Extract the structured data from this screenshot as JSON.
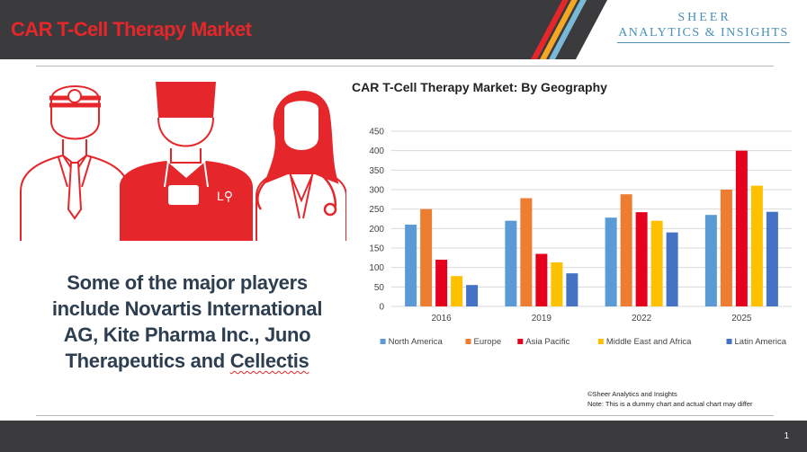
{
  "header": {
    "title": "CAR T-Cell Therapy Market"
  },
  "logo": {
    "line1": "SHEER",
    "line2": "ANALYTICS & INSIGHTS"
  },
  "body": {
    "players_text_main": "Some of the major players include Novartis International AG, Kite Pharma Inc., Juno Therapeutics and ",
    "players_text_last": "Cellectis"
  },
  "notes": {
    "copyright": "©Sheer Analytics and Insights",
    "disclaimer": "Note: This is a dummy chart and actual chart may differ"
  },
  "footer": {
    "page_number": "1"
  },
  "colors": {
    "brand_red": "#e5262a",
    "dark_bar": "#3b3b3d"
  },
  "icons": [
    "doctor-male-icon",
    "surgeon-icon",
    "doctor-female-icon",
    "stethoscope-icon"
  ],
  "chart_data": {
    "type": "bar",
    "title": "CAR T-Cell Therapy Market: By Geography",
    "categories": [
      "2016",
      "2019",
      "2022",
      "2025"
    ],
    "ylim": [
      0,
      450
    ],
    "yticks": [
      0,
      50,
      100,
      150,
      200,
      250,
      300,
      350,
      400,
      450
    ],
    "grid": true,
    "legend_position": "bottom",
    "series": [
      {
        "name": "North America",
        "color": "#5b9bd5",
        "values": [
          210,
          220,
          228,
          235
        ]
      },
      {
        "name": "Europe",
        "color": "#ed7d31",
        "values": [
          250,
          278,
          288,
          300
        ]
      },
      {
        "name": "Asia Pacific",
        "color": "#e5001e",
        "values": [
          120,
          135,
          242,
          400
        ]
      },
      {
        "name": "Middle East and Africa",
        "color": "#ffc000",
        "values": [
          78,
          113,
          220,
          310
        ]
      },
      {
        "name": "Latin America",
        "color": "#4472c4",
        "values": [
          55,
          85,
          190,
          243
        ]
      }
    ]
  }
}
